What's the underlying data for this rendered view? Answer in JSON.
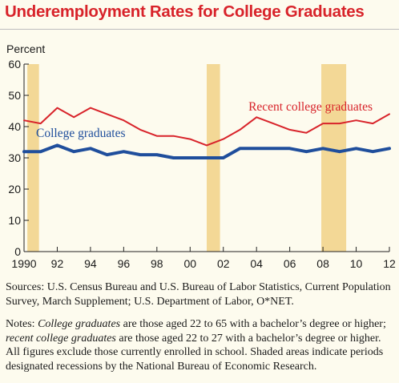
{
  "title": "Underemployment Rates for College Graduates",
  "chart_data": {
    "type": "line",
    "ylabel": "Percent",
    "xlabel": "",
    "xlim": [
      1990,
      2012
    ],
    "ylim": [
      0,
      60
    ],
    "yticks": [
      0,
      10,
      20,
      30,
      40,
      50,
      60
    ],
    "xticks": [
      1990,
      1992,
      1994,
      1996,
      1998,
      2000,
      2002,
      2004,
      2006,
      2008,
      2010,
      2012
    ],
    "xtick_labels": [
      "1990",
      "92",
      "94",
      "96",
      "98",
      "00",
      "02",
      "04",
      "06",
      "08",
      "10",
      "12"
    ],
    "grid": false,
    "recessions": [
      [
        1990.2,
        1990.9
      ],
      [
        2001.0,
        2001.8
      ],
      [
        2007.9,
        2009.4
      ]
    ],
    "series": [
      {
        "name": "Recent college graduates",
        "color": "#d8232a",
        "x": [
          1990,
          1991,
          1992,
          1993,
          1994,
          1995,
          1996,
          1997,
          1998,
          1999,
          2000,
          2001,
          2002,
          2003,
          2004,
          2005,
          2006,
          2007,
          2008,
          2009,
          2010,
          2011,
          2012
        ],
        "values": [
          42,
          41,
          46,
          43,
          46,
          44,
          42,
          39,
          37,
          37,
          36,
          34,
          36,
          39,
          43,
          41,
          39,
          38,
          41,
          41,
          42,
          41,
          44
        ]
      },
      {
        "name": "College graduates",
        "color": "#1f4e9c",
        "x": [
          1990,
          1991,
          1992,
          1993,
          1994,
          1995,
          1996,
          1997,
          1998,
          1999,
          2000,
          2001,
          2002,
          2003,
          2004,
          2005,
          2006,
          2007,
          2008,
          2009,
          2010,
          2011,
          2012
        ],
        "values": [
          32,
          32,
          34,
          32,
          33,
          31,
          32,
          31,
          31,
          30,
          30,
          30,
          30,
          33,
          33,
          33,
          33,
          32,
          33,
          32,
          33,
          32,
          33
        ]
      }
    ]
  },
  "sources_text": "Sources: U.S. Census Bureau and U.S. Bureau of Labor Statistics, Current Population Survey, March Supplement; U.S. Department of Labor, O*NET.",
  "notes": {
    "prefix": "Notes: ",
    "term1": "College graduates",
    "text1": " are those aged 22 to 65 with a bachelor’s degree or higher; ",
    "term2": "recent college graduates",
    "text2": " are those aged 22 to 27 with a bachelor’s degree or higher. All figures exclude those currently enrolled in school. Shaded areas indicate periods designated recessions by the National Bureau of Economic Research."
  },
  "colors": {
    "title": "#d8232a",
    "recession_shade": "#f3d896",
    "background": "#fdfbee"
  }
}
